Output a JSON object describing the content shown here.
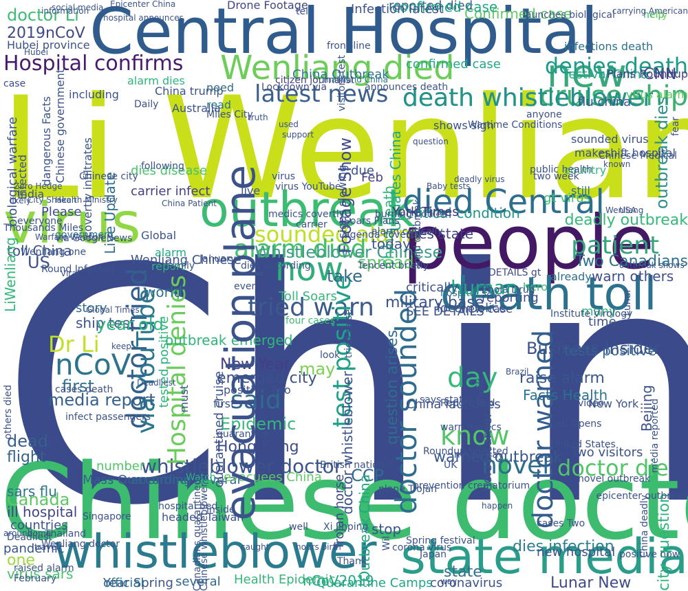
{
  "words": [
    {
      "text": "China",
      "color": "#3b4a8a"
    },
    {
      "text": "Li Wenliang",
      "color": "#c8df19"
    },
    {
      "text": "Chinese doctor",
      "color": "#3dbb6e"
    },
    {
      "text": "Central Hospital",
      "color": "#2f5b8d"
    },
    {
      "text": "people",
      "color": "#431864"
    },
    {
      "text": "virus",
      "color": "#8fd744"
    },
    {
      "text": "whistleblower",
      "color": "#2a7b8e"
    },
    {
      "text": "state media",
      "color": "#2a9d8a"
    },
    {
      "text": "outbreak",
      "color": "#3cbc73"
    },
    {
      "text": "death toll",
      "color": "#2c718e"
    },
    {
      "text": "Wenliang died",
      "color": "#6ccd59"
    },
    {
      "text": "new",
      "color": "#3aa67c"
    },
    {
      "text": "died Central",
      "color": "#2d6e8e"
    },
    {
      "text": "Hospital confirms",
      "color": "#471a6b"
    },
    {
      "text": "cruise ship",
      "color": "#3eaf6f"
    },
    {
      "text": "death whistleblower",
      "color": "#22928b"
    },
    {
      "text": "denies death",
      "color": "#1e9b8a"
    },
    {
      "text": "latest news",
      "color": "#3a5f8c"
    },
    {
      "text": "sounded alarm",
      "color": "#bddf26"
    },
    {
      "text": "alarm died",
      "color": "#46c06a"
    },
    {
      "text": "tried warn",
      "color": "#3a5a8c"
    },
    {
      "text": "now",
      "color": "#2fae7a"
    },
    {
      "text": "patient",
      "color": "#34a47c"
    },
    {
      "text": "Whistleblower Chinese",
      "color": "#3f9b8a"
    },
    {
      "text": "doctor sounded",
      "color": "#2f6d8e"
    },
    {
      "text": "test positive",
      "color": "#1fa188"
    },
    {
      "text": "doctor tried",
      "color": "#335f8d"
    },
    {
      "text": "via YouTube",
      "color": "#2a778e"
    },
    {
      "text": "Hospital denies",
      "color": "#69cc5b"
    },
    {
      "text": "doctor warned",
      "color": "#345e8d"
    },
    {
      "text": "know",
      "color": "#54c567"
    },
    {
      "text": "day",
      "color": "#35b779"
    },
    {
      "text": "Dr Li",
      "color": "#c0df25"
    },
    {
      "text": "nCoV",
      "color": "#2c738e"
    },
    {
      "text": "said",
      "color": "#2f6b8e"
    },
    {
      "text": "Hong Kong",
      "color": "#3e4c8a"
    },
    {
      "text": "novel",
      "color": "#2e6d8e"
    },
    {
      "text": "doctor die",
      "color": "#52c569"
    },
    {
      "text": "whistleblower doctor",
      "color": "#3b538b"
    },
    {
      "text": "warned outbreak",
      "color": "#37588c"
    },
    {
      "text": "Canada",
      "color": "#5cc863"
    },
    {
      "text": "Epidemic",
      "color": "#35b779"
    },
    {
      "text": "New Year",
      "color": "#433e85"
    },
    {
      "text": "emerged city",
      "color": "#3b518b"
    },
    {
      "text": "media report",
      "color": "#355f8d"
    },
    {
      "text": "first",
      "color": "#2e6f8e"
    },
    {
      "text": "Confirmed case",
      "color": "#5ec962"
    },
    {
      "text": "Drone Footage",
      "color": "#404588"
    },
    {
      "text": "reported died",
      "color": "#38598c"
    },
    {
      "text": "confirmed case",
      "color": "#22a884"
    },
    {
      "text": "doctor Li",
      "color": "#3cbc74"
    },
    {
      "text": "2019nCoV",
      "color": "#3f4889"
    },
    {
      "text": "CNN",
      "color": "#404588"
    },
    {
      "text": "critical condition",
      "color": "#20928c"
    },
    {
      "text": "deadly outbreak",
      "color": "#35b779"
    },
    {
      "text": "outbreak dies",
      "color": "#2e8f8b"
    },
    {
      "text": "Two Canadians",
      "color": "#2d708e"
    },
    {
      "text": "warn others",
      "color": "#3d4e8a"
    },
    {
      "text": "raise alarm",
      "color": "#39568c"
    },
    {
      "text": "Facts Health",
      "color": "#2c718e"
    },
    {
      "text": "tests positive",
      "color": "#32658e"
    },
    {
      "text": "Lunar New",
      "color": "#3e4a89"
    },
    {
      "text": "state",
      "color": "#2e6e8e"
    },
    {
      "text": "dies infection",
      "color": "#2c7e8e"
    },
    {
      "text": "coronavirus",
      "color": "#3b528b"
    },
    {
      "text": "Quarantine Camps",
      "color": "#22a785"
    },
    {
      "text": "nCoV2019",
      "color": "#22a785"
    },
    {
      "text": "Health Epidemic",
      "color": "#34b679"
    },
    {
      "text": "several",
      "color": "#31668e"
    },
    {
      "text": "Year Spring",
      "color": "#3a548c"
    },
    {
      "text": "official",
      "color": "#2c728e"
    },
    {
      "text": "virus sars",
      "color": "#4ac16d"
    },
    {
      "text": "one",
      "color": "#9bd93c"
    },
    {
      "text": "pandemic",
      "color": "#36538d"
    },
    {
      "text": "dead",
      "color": "#35608d"
    },
    {
      "text": "flight",
      "color": "#33638d"
    },
    {
      "text": "sars flu",
      "color": "#2c728e"
    },
    {
      "text": "ill hospital",
      "color": "#404588"
    },
    {
      "text": "countries",
      "color": "#3b528b"
    },
    {
      "text": "Mass Quarantine",
      "color": "#355f8d"
    },
    {
      "text": "according several",
      "color": "#31688e"
    },
    {
      "text": "evacuees China",
      "color": "#5ec962"
    },
    {
      "text": "Watch",
      "color": "#2ab07f"
    },
    {
      "text": "CCP",
      "color": "#2f6b8e"
    },
    {
      "text": "Outbreak China",
      "color": "#22a884"
    },
    {
      "text": "question arises",
      "color": "#2f6c8e"
    },
    {
      "text": "Trojan horse",
      "color": "#3f4889"
    },
    {
      "text": "number",
      "color": "#52c569"
    },
    {
      "text": "Wenliang Chinese",
      "color": "#3b528b"
    },
    {
      "text": "China Outbreak",
      "color": "#2a768e"
    },
    {
      "text": "death whistleblower",
      "color": "#22928b"
    },
    {
      "text": "virus alarm",
      "color": "#5ec962"
    },
    {
      "text": "alarm dies",
      "color": "#2fb47c"
    },
    {
      "text": "Lockdown via",
      "color": "#3d4d8a"
    },
    {
      "text": "citizen journalist",
      "color": "#433d84"
    },
    {
      "text": "mainland China",
      "color": "#2f6c8e"
    },
    {
      "text": "Live Update",
      "color": "#2e6f8e"
    },
    {
      "text": "Footage Show",
      "color": "#3e4c8a"
    },
    {
      "text": "Updates China",
      "color": "#22a884"
    },
    {
      "text": "China death",
      "color": "#2fb47c"
    },
    {
      "text": "festival China",
      "color": "#22a785"
    },
    {
      "text": "infections death",
      "color": "#2e6f8e"
    },
    {
      "text": "confirmed case",
      "color": "#22a884"
    },
    {
      "text": "country",
      "color": "#35b779"
    },
    {
      "text": "Business Insider",
      "color": "#3b528b"
    },
    {
      "text": "Plans Roundup",
      "color": "#433e85"
    },
    {
      "text": "gt virus",
      "color": "#3cbc74"
    },
    {
      "text": "still",
      "color": "#2c738e"
    },
    {
      "text": "DETAILS gt",
      "color": "#3f4889"
    },
    {
      "text": "hospital say",
      "color": "#2c728e"
    },
    {
      "text": "York Times",
      "color": "#472f7d"
    },
    {
      "text": "already",
      "color": "#2e6f8e"
    },
    {
      "text": "reporting",
      "color": "#3e4c8a"
    },
    {
      "text": "hero",
      "color": "#40bd72"
    },
    {
      "text": "military base",
      "color": "#3b528b"
    },
    {
      "text": "take",
      "color": "#31688e"
    },
    {
      "text": "human",
      "color": "#22a785"
    },
    {
      "text": "spread",
      "color": "#5ec962"
    },
    {
      "text": "US",
      "color": "#3b528b"
    },
    {
      "text": "world",
      "color": "#2c728e"
    },
    {
      "text": "today",
      "color": "#3b528b"
    },
    {
      "text": "alarm",
      "color": "#22a785"
    },
    {
      "text": "report",
      "color": "#2fb47c"
    },
    {
      "text": "dies state",
      "color": "#433d84"
    },
    {
      "text": "Please",
      "color": "#3e4c8a"
    },
    {
      "text": "toll China",
      "color": "#3b528b"
    },
    {
      "text": "LiWenliang",
      "color": "#35b779"
    },
    {
      "text": "government",
      "color": "#2a788e"
    },
    {
      "text": "Wenliang one",
      "color": "#3b528b"
    },
    {
      "text": "India",
      "color": "#3b528b"
    },
    {
      "text": "carrier infect",
      "color": "#433e85"
    },
    {
      "text": "dies disease",
      "color": "#4ac16d"
    },
    {
      "text": "due",
      "color": "#3b528b"
    },
    {
      "text": "Feb",
      "color": "#433e85"
    },
    {
      "text": "case",
      "color": "#3e4c8a"
    },
    {
      "text": "Hubei province",
      "color": "#3b528b"
    },
    {
      "text": "Infection latest",
      "color": "#3b528b"
    },
    {
      "text": "help",
      "color": "#2fb47c"
    },
    {
      "text": "city",
      "color": "#7ad151"
    },
    {
      "text": "China trump",
      "color": "#3b528b"
    },
    {
      "text": "need",
      "color": "#31688e"
    },
    {
      "text": "read",
      "color": "#2a788e"
    },
    {
      "text": "story",
      "color": "#31688e"
    },
    {
      "text": "ship test",
      "color": "#3b528b"
    },
    {
      "text": "year old",
      "color": "#2fb47c"
    },
    {
      "text": "may",
      "color": "#7ad151"
    },
    {
      "text": "Toll Soars",
      "color": "#35b779"
    },
    {
      "text": "four cases",
      "color": "#3cbc74"
    },
    {
      "text": "local police",
      "color": "#3b528b"
    },
    {
      "text": "new case",
      "color": "#3b528b"
    },
    {
      "text": "SEE DETAILS",
      "color": "#3b528b"
    },
    {
      "text": "critically ill",
      "color": "#3b528b"
    },
    {
      "text": "many",
      "color": "#35b779"
    },
    {
      "text": "time",
      "color": "#3b528b"
    },
    {
      "text": "Lunar",
      "color": "#3b528b"
    },
    {
      "text": "Institute Virology",
      "color": "#3b528b"
    },
    {
      "text": "horse carrier",
      "color": "#3b528b"
    },
    {
      "text": "tested positive",
      "color": "#2fb47c"
    },
    {
      "text": "outbreak emerged",
      "color": "#2fb47c"
    },
    {
      "text": "first",
      "color": "#3b528b"
    },
    {
      "text": "positive Two",
      "color": "#3b528b"
    },
    {
      "text": "China launches",
      "color": "#3b528b"
    },
    {
      "text": "says state",
      "color": "#3b528b"
    },
    {
      "text": "Two visitors",
      "color": "#3b528b"
    },
    {
      "text": "video",
      "color": "#3b528b"
    },
    {
      "text": "New York",
      "color": "#3b528b"
    },
    {
      "text": "Beijing",
      "color": "#3b528b"
    },
    {
      "text": "media reported",
      "color": "#3b528b"
    },
    {
      "text": "Roundup Infected",
      "color": "#3b528b"
    },
    {
      "text": "media say",
      "color": "#3b528b"
    },
    {
      "text": "warn medics",
      "color": "#3b528b"
    },
    {
      "text": "city question",
      "color": "#2fb47c"
    },
    {
      "text": "China deadly",
      "color": "#3b528b"
    },
    {
      "text": "corona virus",
      "color": "#3b528b"
    },
    {
      "text": "Japan",
      "color": "#3b528b"
    },
    {
      "text": "stop",
      "color": "#3b528b"
    },
    {
      "text": "way",
      "color": "#3b528b"
    },
    {
      "text": "positive now",
      "color": "#3b528b"
    },
    {
      "text": "new hospital",
      "color": "#3b528b"
    },
    {
      "text": "cases Two",
      "color": "#3b528b"
    },
    {
      "text": "Xi Jinping",
      "color": "#3b528b"
    },
    {
      "text": "well",
      "color": "#3b528b"
    },
    {
      "text": "inside",
      "color": "#3b528b"
    },
    {
      "text": "headed Taiwan",
      "color": "#3b528b"
    },
    {
      "text": "Canadians quarantined",
      "color": "#3b528b"
    },
    {
      "text": "plane Trojan",
      "color": "#3b528b"
    },
    {
      "text": "hospital bed",
      "color": "#3b528b"
    },
    {
      "text": "Wenliang doctor",
      "color": "#3b528b"
    },
    {
      "text": "raised alarm",
      "color": "#3b528b"
    },
    {
      "text": "February",
      "color": "#3b528b"
    },
    {
      "text": "Deadliest",
      "color": "#3b528b"
    },
    {
      "text": "cases death",
      "color": "#3b528b"
    },
    {
      "text": "others died",
      "color": "#3b528b"
    },
    {
      "text": "infect passengers",
      "color": "#3b528b"
    },
    {
      "text": "quarantine",
      "color": "#3b528b"
    },
    {
      "text": "Singapore",
      "color": "#3b528b"
    },
    {
      "text": "via GoogleNews",
      "color": "#3b528b"
    },
    {
      "text": "Thousands Miles",
      "color": "#3b528b"
    },
    {
      "text": "Round Infected",
      "color": "#3b528b"
    },
    {
      "text": "must",
      "color": "#3b528b"
    },
    {
      "text": "Chinese whistleblower",
      "color": "#3b528b"
    },
    {
      "text": "Chinese government",
      "color": "#3b528b"
    },
    {
      "text": "biological warfare",
      "color": "#3b528b"
    },
    {
      "text": "dangerous Facts",
      "color": "#3b528b"
    },
    {
      "text": "Infected",
      "color": "#3b528b"
    },
    {
      "text": "covertly infiltrates",
      "color": "#3b528b"
    },
    {
      "text": "quarantined cruise",
      "color": "#3b528b"
    },
    {
      "text": "evacuation plane",
      "color": "#3b528b"
    },
    {
      "text": "doctor whistleblower",
      "color": "#3b528b"
    },
    {
      "text": "Wil",
      "color": "#3b528b"
    },
    {
      "text": "Spring festival",
      "color": "#3b528b"
    },
    {
      "text": "launches biological",
      "color": "#3b528b"
    },
    {
      "text": "UK",
      "color": "#3b528b"
    },
    {
      "text": "including",
      "color": "#3b528b"
    },
    {
      "text": "virus YouTube",
      "color": "#3b528b"
    },
    {
      "text": "virus",
      "color": "#3b528b"
    },
    {
      "text": "signs slowing",
      "color": "#3b528b"
    },
    {
      "text": "amid outbreak",
      "color": "#3b528b"
    },
    {
      "text": "sounded virus",
      "color": "#3b528b"
    },
    {
      "text": "makeshift hospital",
      "color": "#3b528b"
    },
    {
      "text": "flu china",
      "color": "#3b528b"
    },
    {
      "text": "shows sign",
      "color": "#3b528b"
    },
    {
      "text": "burning bodies",
      "color": "#3b528b"
    },
    {
      "text": "alarm critically",
      "color": "#3b528b"
    },
    {
      "text": "two week",
      "color": "#3b528b"
    },
    {
      "text": "public health",
      "color": "#3b528b"
    },
    {
      "text": "anyone",
      "color": "#3b528b"
    },
    {
      "text": "fear",
      "color": "#3b528b"
    },
    {
      "text": "think",
      "color": "#3b528b"
    },
    {
      "text": "live",
      "color": "#3b528b"
    },
    {
      "text": "tried raise",
      "color": "#3b528b"
    },
    {
      "text": "look",
      "color": "#3b528b"
    },
    {
      "text": "dies according",
      "color": "#3b528b"
    },
    {
      "text": "even",
      "color": "#3b528b"
    },
    {
      "text": "January",
      "color": "#3b528b"
    },
    {
      "text": "family",
      "color": "#3b528b"
    },
    {
      "text": "Global",
      "color": "#3b528b"
    },
    {
      "text": "everyone",
      "color": "#3b528b"
    },
    {
      "text": "Chinese city",
      "color": "#3b528b"
    },
    {
      "text": "truth",
      "color": "#3b528b"
    },
    {
      "text": "used",
      "color": "#3b528b"
    },
    {
      "text": "support",
      "color": "#3b528b"
    },
    {
      "text": "Daily",
      "color": "#3b528b"
    },
    {
      "text": "following",
      "color": "#3b528b"
    },
    {
      "text": "Australia",
      "color": "#3b528b"
    },
    {
      "text": "Miles City",
      "color": "#3b528b"
    },
    {
      "text": "Hubei",
      "color": "#3b528b"
    },
    {
      "text": "tell",
      "color": "#3b528b"
    },
    {
      "text": "front-line",
      "color": "#3b528b"
    },
    {
      "text": "visitors test",
      "color": "#3b528b"
    },
    {
      "text": "announces death",
      "color": "#3b528b"
    },
    {
      "text": "social media",
      "color": "#3b528b"
    },
    {
      "text": "hospital announces",
      "color": "#3b528b"
    },
    {
      "text": "Epicenter China",
      "color": "#3b528b"
    },
    {
      "text": "information",
      "color": "#3b528b"
    },
    {
      "text": "Wartime Conditions",
      "color": "#3b528b"
    },
    {
      "text": "carrying American",
      "color": "#3b528b"
    },
    {
      "text": "Chinese Medical",
      "color": "#3b528b"
    },
    {
      "text": "Health Ministry",
      "color": "#3b528b"
    },
    {
      "text": "City Shaken",
      "color": "#3b528b"
    },
    {
      "text": "China Patient",
      "color": "#3b528b"
    },
    {
      "text": "Zero Hedge",
      "color": "#3b528b"
    },
    {
      "text": "medics covertly",
      "color": "#3b528b"
    },
    {
      "text": "carrier",
      "color": "#3b528b"
    },
    {
      "text": "Wenliang",
      "color": "#3b528b"
    },
    {
      "text": "agenda covertly",
      "color": "#3b528b"
    },
    {
      "text": "Soars Plans",
      "color": "#3b528b"
    },
    {
      "text": "question",
      "color": "#3b528b"
    },
    {
      "text": "Baby tests",
      "color": "#3b528b"
    },
    {
      "text": "deadly virus",
      "color": "#3b528b"
    },
    {
      "text": "outbreak shows",
      "color": "#3b528b"
    },
    {
      "text": "Tencent briefly",
      "color": "#3b528b"
    },
    {
      "text": "Ebola Drug",
      "color": "#3b528b"
    },
    {
      "text": "USA",
      "color": "#3b528b"
    },
    {
      "text": "United States",
      "color": "#3b528b"
    },
    {
      "text": "crematorium",
      "color": "#3b528b"
    },
    {
      "text": "happen",
      "color": "#3b528b"
    },
    {
      "text": "novel outbreak",
      "color": "#3b528b"
    },
    {
      "text": "epicenter outbreak",
      "color": "#3b528b"
    },
    {
      "text": "British national",
      "color": "#3b528b"
    },
    {
      "text": "travel",
      "color": "#3b528b"
    },
    {
      "text": "home",
      "color": "#3b528b"
    },
    {
      "text": "around",
      "color": "#3b528b"
    },
    {
      "text": "hours birth",
      "color": "#3b528b"
    },
    {
      "text": "Lab Opens",
      "color": "#3b528b"
    },
    {
      "text": "Thank",
      "color": "#3b528b"
    },
    {
      "text": "prevention",
      "color": "#3b528b"
    },
    {
      "text": "caught",
      "color": "#3b528b"
    },
    {
      "text": "Report said",
      "color": "#3b528b"
    },
    {
      "text": "Brazil",
      "color": "#3b528b"
    },
    {
      "text": "Thailand",
      "color": "#3b528b"
    },
    {
      "text": "known",
      "color": "#3b528b"
    },
    {
      "text": "likely",
      "color": "#3b528b"
    },
    {
      "text": "Warfare Weapon",
      "color": "#3b528b"
    },
    {
      "text": "Viral",
      "color": "#3b528b"
    },
    {
      "text": "Global Times",
      "color": "#3b528b"
    },
    {
      "text": "keep",
      "color": "#3b528b"
    },
    {
      "text": "Deadliest",
      "color": "#3b528b"
    }
  ]
}
